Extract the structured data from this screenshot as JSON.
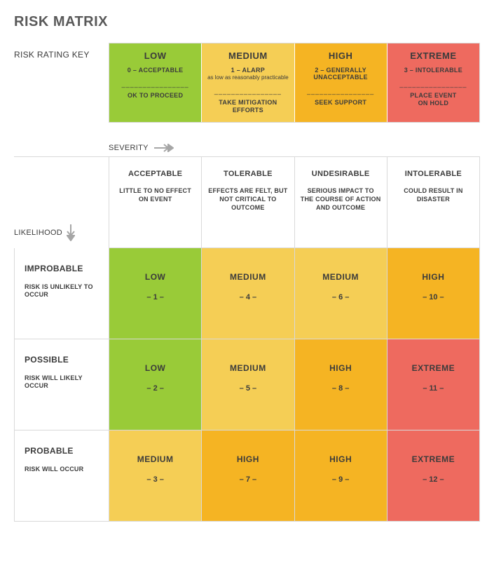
{
  "title": "RISK MATRIX",
  "colors": {
    "low": "#99cb38",
    "medium": "#f5ce55",
    "high": "#f5b423",
    "extreme": "#ee6a5f",
    "border": "#d9d9d9",
    "text": "#3b3b3b",
    "arrow": "#a6a6a6"
  },
  "key": {
    "label": "RISK RATING KEY",
    "cells": [
      {
        "title": "LOW",
        "code": "0 – ACCEPTABLE",
        "note": "",
        "action": "OK TO PROCEED",
        "bg": "#99cb38"
      },
      {
        "title": "MEDIUM",
        "code": "1 – ALARP",
        "note": "as low as reasonably practicable",
        "action": "TAKE MITIGATION EFFORTS",
        "bg": "#f5ce55"
      },
      {
        "title": "HIGH",
        "code": "2 – GENERALLY UNACCEPTABLE",
        "note": "",
        "action": "SEEK SUPPORT",
        "bg": "#f5b423"
      },
      {
        "title": "EXTREME",
        "code": "3 – INTOLERABLE",
        "note": "",
        "action": "PLACE EVENT ON HOLD",
        "bg": "#ee6a5f"
      }
    ]
  },
  "axes": {
    "severity": "SEVERITY",
    "likelihood": "LIKELIHOOD"
  },
  "severityHeaders": [
    {
      "title": "ACCEPTABLE",
      "desc": "LITTLE TO NO EFFECT ON EVENT"
    },
    {
      "title": "TOLERABLE",
      "desc": "EFFECTS ARE FELT, BUT NOT CRITICAL TO OUTCOME"
    },
    {
      "title": "UNDESIRABLE",
      "desc": "SERIOUS IMPACT TO THE COURSE OF ACTION AND OUTCOME"
    },
    {
      "title": "INTOLERABLE",
      "desc": "COULD RESULT IN DISASTER"
    }
  ],
  "likelihoodHeaders": [
    {
      "title": "IMPROBABLE",
      "desc": "RISK IS UNLIKELY TO OCCUR"
    },
    {
      "title": "POSSIBLE",
      "desc": "RISK WILL LIKELY OCCUR"
    },
    {
      "title": "PROBABLE",
      "desc": "RISK WILL OCCUR"
    }
  ],
  "matrix": [
    [
      {
        "level": "LOW",
        "score": "– 1 –",
        "bg": "#99cb38"
      },
      {
        "level": "MEDIUM",
        "score": "– 4 –",
        "bg": "#f5ce55"
      },
      {
        "level": "MEDIUM",
        "score": "– 6 –",
        "bg": "#f5ce55"
      },
      {
        "level": "HIGH",
        "score": "– 10 –",
        "bg": "#f5b423"
      }
    ],
    [
      {
        "level": "LOW",
        "score": "– 2 –",
        "bg": "#99cb38"
      },
      {
        "level": "MEDIUM",
        "score": "– 5 –",
        "bg": "#f5ce55"
      },
      {
        "level": "HIGH",
        "score": "– 8 –",
        "bg": "#f5b423"
      },
      {
        "level": "EXTREME",
        "score": "– 11 –",
        "bg": "#ee6a5f"
      }
    ],
    [
      {
        "level": "MEDIUM",
        "score": "– 3 –",
        "bg": "#f5ce55"
      },
      {
        "level": "HIGH",
        "score": "– 7 –",
        "bg": "#f5b423"
      },
      {
        "level": "HIGH",
        "score": "– 9 –",
        "bg": "#f5b423"
      },
      {
        "level": "EXTREME",
        "score": "– 12 –",
        "bg": "#ee6a5f"
      }
    ]
  ]
}
